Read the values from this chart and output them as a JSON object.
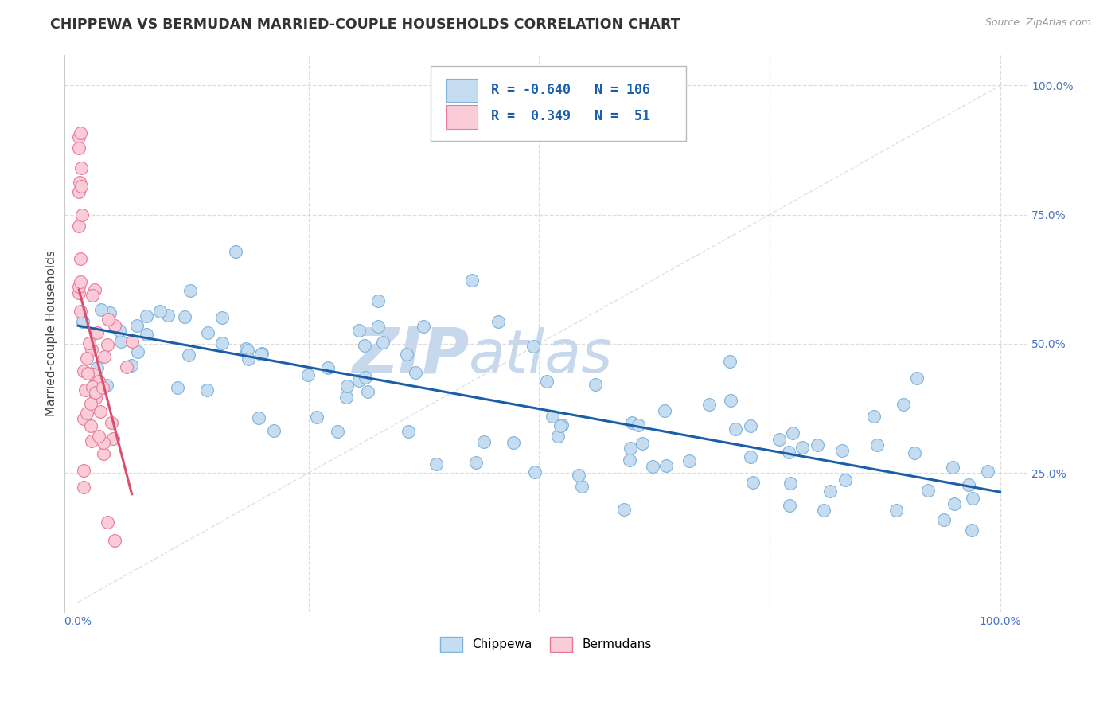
{
  "title": "CHIPPEWA VS BERMUDAN MARRIED-COUPLE HOUSEHOLDS CORRELATION CHART",
  "source": "Source: ZipAtlas.com",
  "ylabel": "Married-couple Households",
  "chippewa_R": -0.64,
  "chippewa_N": 106,
  "bermudan_R": 0.349,
  "bermudan_N": 51,
  "chippewa_color": "#c6dcf0",
  "chippewa_edge_color": "#7fb3d9",
  "bermudan_color": "#f9ccd8",
  "bermudan_edge_color": "#e87a9a",
  "trend_chippewa_color": "#1a5ea8",
  "trend_bermudan_color": "#d94f6e",
  "watermark_zip_color": "#c8d8ec",
  "watermark_atlas_color": "#c8d8ec",
  "background_color": "#ffffff",
  "grid_color": "#dddddd",
  "diag_color": "#cccccc"
}
